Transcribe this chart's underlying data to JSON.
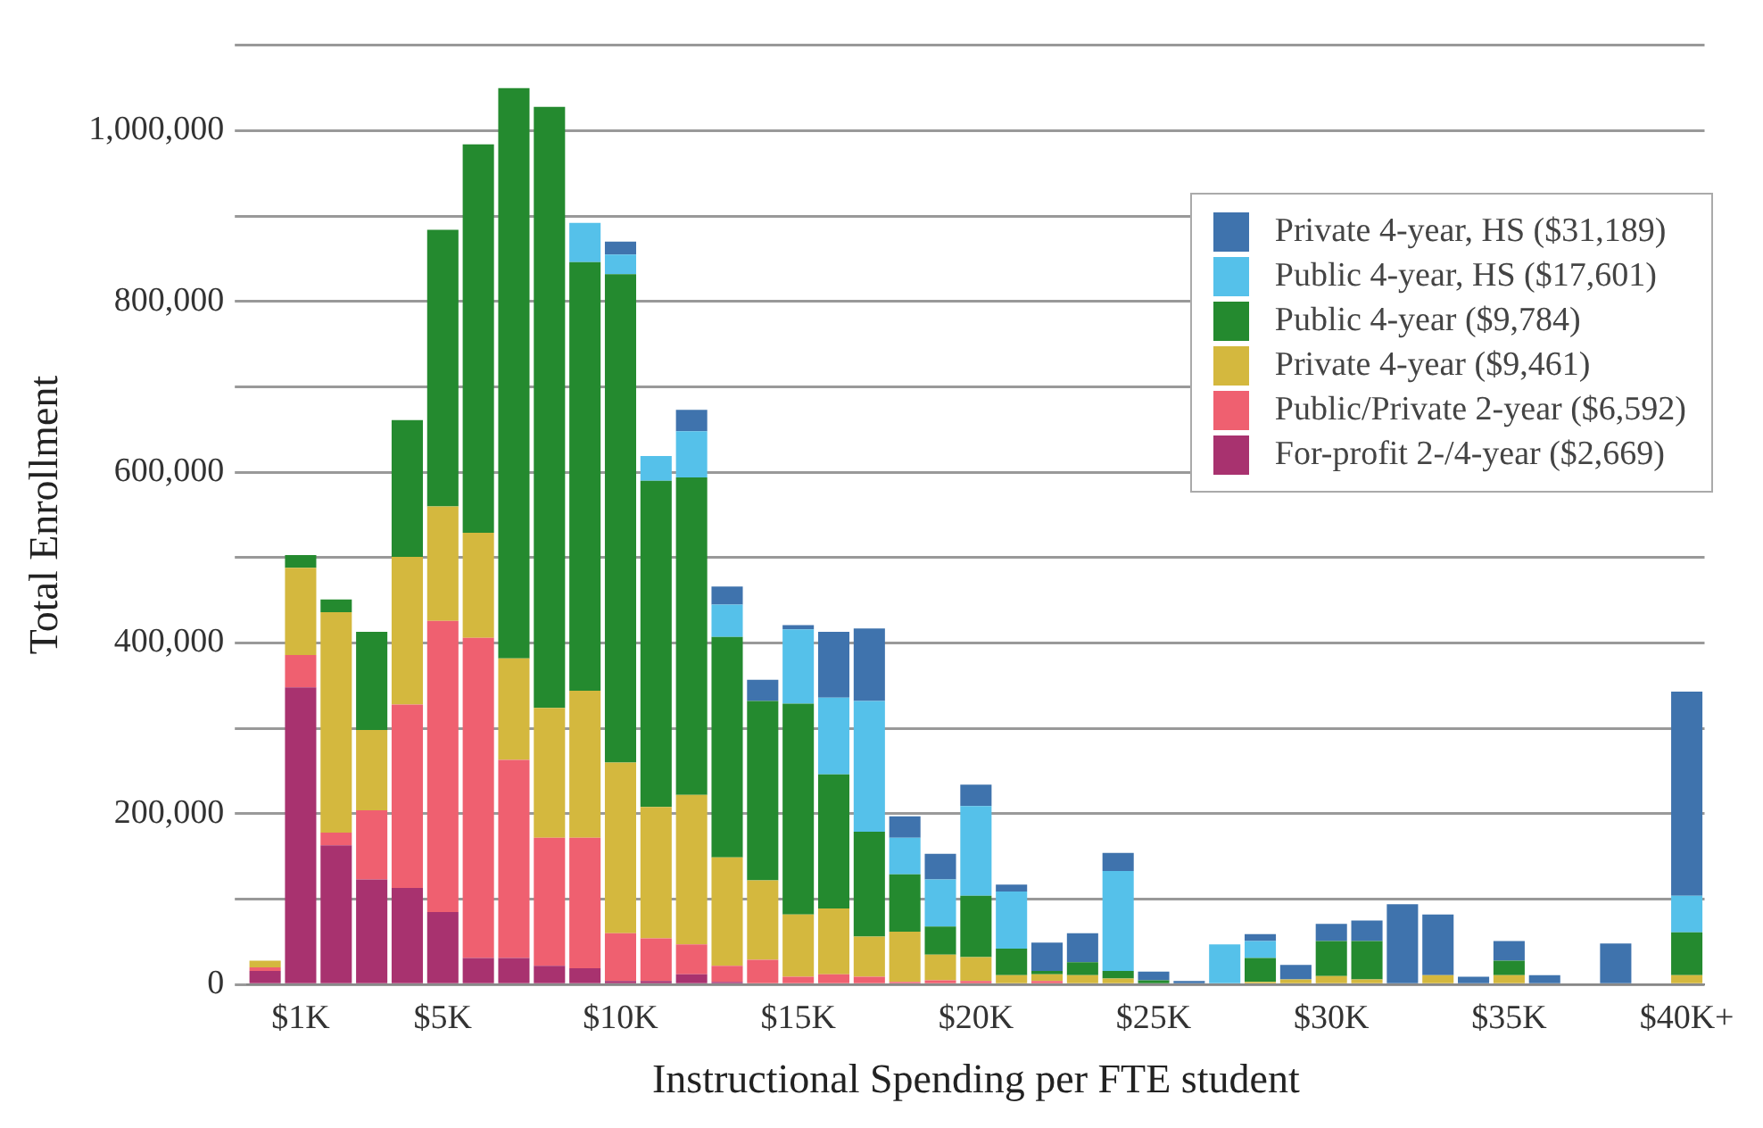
{
  "chart_data": {
    "type": "bar",
    "stacked": true,
    "xlabel": "Instructional Spending per FTE student",
    "ylabel": "Total Enrollment",
    "categories": [
      null,
      "$1K",
      null,
      null,
      null,
      "$5K",
      null,
      null,
      null,
      null,
      "$10K",
      null,
      null,
      null,
      null,
      "$15K",
      null,
      null,
      null,
      null,
      "$20K",
      null,
      null,
      null,
      null,
      "$25K",
      null,
      null,
      null,
      null,
      "$30K",
      null,
      null,
      null,
      null,
      "$35K",
      null,
      null,
      null,
      null,
      "$40K+"
    ],
    "ylim": [
      0,
      1100000
    ],
    "yticks": [
      {
        "value": 0,
        "label": "0"
      },
      {
        "value": 100000,
        "label": null
      },
      {
        "value": 200000,
        "label": "200,000"
      },
      {
        "value": 300000,
        "label": null
      },
      {
        "value": 400000,
        "label": "400,000"
      },
      {
        "value": 500000,
        "label": null
      },
      {
        "value": 600000,
        "label": "600,000"
      },
      {
        "value": 700000,
        "label": null
      },
      {
        "value": 800000,
        "label": "800,000"
      },
      {
        "value": 900000,
        "label": null
      },
      {
        "value": 1000000,
        "label": "1,000,000"
      },
      {
        "value": 1100000,
        "label": null
      }
    ],
    "grid": "y",
    "legend": "top right",
    "series": [
      {
        "name": "For-profit 2-/4-year ($2,669)",
        "color": "#a8326f",
        "values": [
          16000,
          348000,
          163000,
          123000,
          113000,
          85000,
          31000,
          31000,
          22000,
          19000,
          4000,
          4000,
          12000,
          3000,
          0,
          0,
          0,
          0,
          0,
          0,
          0,
          0,
          0,
          0,
          0,
          0,
          0,
          0,
          0,
          0,
          0,
          0,
          0,
          0,
          0,
          0,
          0,
          0,
          0,
          0,
          0
        ]
      },
      {
        "name": "Public/Private 2-year ($6,592)",
        "color": "#ef6070",
        "values": [
          4000,
          38000,
          15000,
          81000,
          215000,
          341000,
          375000,
          232000,
          150000,
          153000,
          56000,
          50000,
          35000,
          19000,
          29000,
          9000,
          12000,
          9000,
          3000,
          5000,
          4000,
          0,
          4000,
          0,
          0,
          0,
          0,
          0,
          0,
          0,
          0,
          0,
          0,
          0,
          0,
          0,
          0,
          0,
          0,
          0,
          0
        ]
      },
      {
        "name": "Private 4-year ($9,461)",
        "color": "#d4b83e",
        "values": [
          8000,
          102000,
          258000,
          94000,
          173000,
          134000,
          123000,
          119000,
          152000,
          172000,
          200000,
          154000,
          175000,
          127000,
          93000,
          73000,
          77000,
          47000,
          59000,
          30000,
          28000,
          11000,
          8000,
          11000,
          7000,
          0,
          0,
          0,
          3000,
          6000,
          10000,
          6000,
          0,
          11000,
          0,
          11000,
          0,
          0,
          0,
          0,
          11000
        ]
      },
      {
        "name": "Public 4-year ($9,784)",
        "color": "#248a2f",
        "values": [
          0,
          15000,
          15000,
          115000,
          160000,
          324000,
          455000,
          668000,
          704000,
          502000,
          572000,
          382000,
          372000,
          258000,
          210000,
          247000,
          157000,
          123000,
          67000,
          33000,
          72000,
          31000,
          4000,
          15000,
          9000,
          5000,
          0,
          0,
          28000,
          0,
          41000,
          45000,
          0,
          0,
          0,
          17000,
          0,
          0,
          0,
          0,
          50000
        ]
      },
      {
        "name": "Public 4-year, HS ($17,601)",
        "color": "#55c1ea",
        "values": [
          0,
          0,
          0,
          0,
          0,
          0,
          0,
          0,
          0,
          46000,
          23000,
          29000,
          54000,
          38000,
          0,
          87000,
          90000,
          153000,
          43000,
          55000,
          105000,
          67000,
          0,
          0,
          117000,
          0,
          0,
          47000,
          20000,
          0,
          0,
          0,
          0,
          0,
          0,
          0,
          0,
          0,
          0,
          0,
          43000
        ]
      },
      {
        "name": "Private 4-year, HS ($31,189)",
        "color": "#3f73ad",
        "values": [
          0,
          0,
          0,
          0,
          0,
          0,
          0,
          0,
          0,
          0,
          15000,
          0,
          25000,
          21000,
          25000,
          5000,
          77000,
          85000,
          25000,
          30000,
          25000,
          8000,
          33000,
          34000,
          21000,
          10000,
          4000,
          0,
          8000,
          17000,
          20000,
          24000,
          94000,
          71000,
          9000,
          23000,
          11000,
          0,
          48000,
          0,
          239000
        ]
      }
    ]
  }
}
